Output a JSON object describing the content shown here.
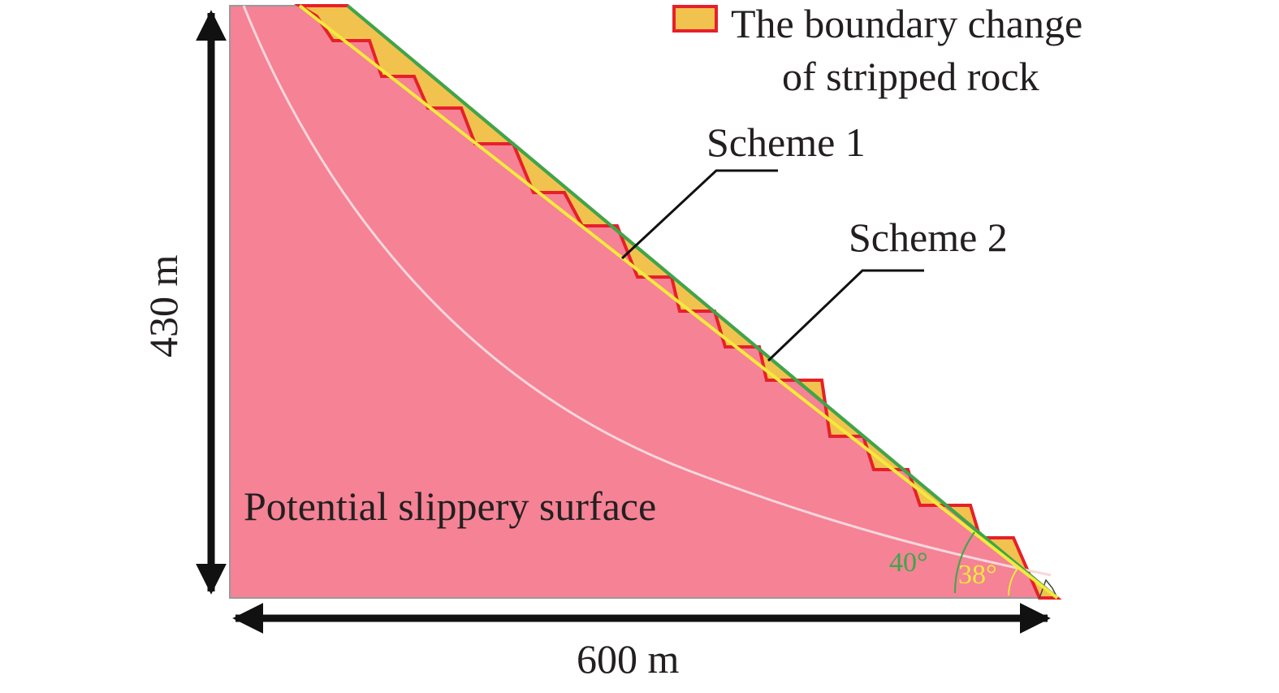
{
  "legend": {
    "line1": "The boundary change",
    "line2": "of stripped rock",
    "swatch_fill": "#f2c24f",
    "swatch_stroke": "#e6202a"
  },
  "labels": {
    "scheme1": "Scheme 1",
    "scheme2": "Scheme 2",
    "slip_surface": "Potential slippery surface",
    "angle_scheme1": "40°",
    "angle_scheme2": "38°",
    "height": "430 m",
    "width": "600 m"
  },
  "colors": {
    "slope_fill": "#f58295",
    "stripped_fill": "#f2c24f",
    "stripped_stroke": "#e6202a",
    "scheme1_line": "#3aa84a",
    "scheme2_line": "#f2ea3c",
    "slip_curve": "#f7d7dc",
    "text": "#231f20"
  }
}
